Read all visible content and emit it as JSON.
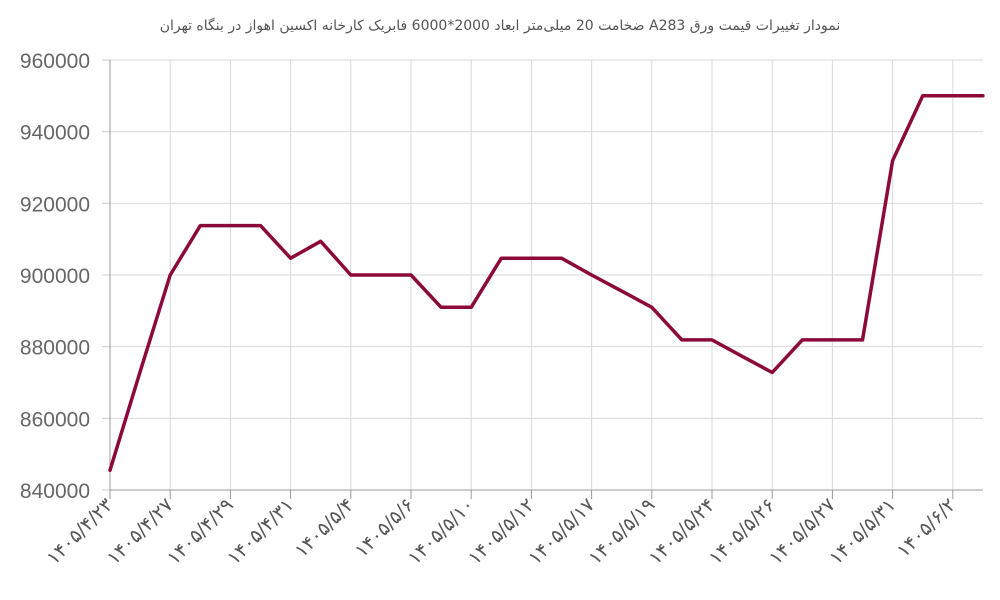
{
  "chart_data": {
    "type": "line",
    "title": "نمودار تغییرات قیمت ورق A283  ضخامت 20 میلی‌متر ابعاد 2000*6000 فابریک کارخانه اکسین اهواز در بنگاه تهران",
    "xlabel": "",
    "ylabel": "",
    "ylim": [
      840000,
      960000
    ],
    "yticks": [
      "840000",
      "860000",
      "880000",
      "900000",
      "920000",
      "940000",
      "960000"
    ],
    "xtick_labels": [
      "۱۴۰۵/۴/۲۳",
      "۱۴۰۵/۴/۲۷",
      "۱۴۰۵/۴/۲۹",
      "۱۴۰۵/۴/۳۱",
      "۱۴۰۵/۵/۴",
      "۱۴۰۵/۵/۶",
      "۱۴۰۵/۵/۱۰",
      "۱۴۰۵/۵/۱۲",
      "۱۴۰۵/۵/۱۷",
      "۱۴۰۵/۵/۱۹",
      "۱۴۰۵/۵/۲۴",
      "۱۴۰۵/۵/۲۶",
      "۱۴۰۵/۵/۲۷",
      "۱۴۰۵/۵/۳۱",
      "۱۴۰۵/۶/۲"
    ],
    "grid": true,
    "series": [
      {
        "color": "#8b0a3a",
        "values": [
          845500,
          873000,
          900000,
          913800,
          913800,
          913800,
          904700,
          909400,
          900000,
          900000,
          900000,
          891000,
          891000,
          904700,
          904700,
          904700,
          900000,
          895500,
          891000,
          881900,
          881900,
          877300,
          872800,
          881900,
          881900,
          881900,
          931900,
          950000,
          950000,
          950000
        ]
      }
    ]
  }
}
